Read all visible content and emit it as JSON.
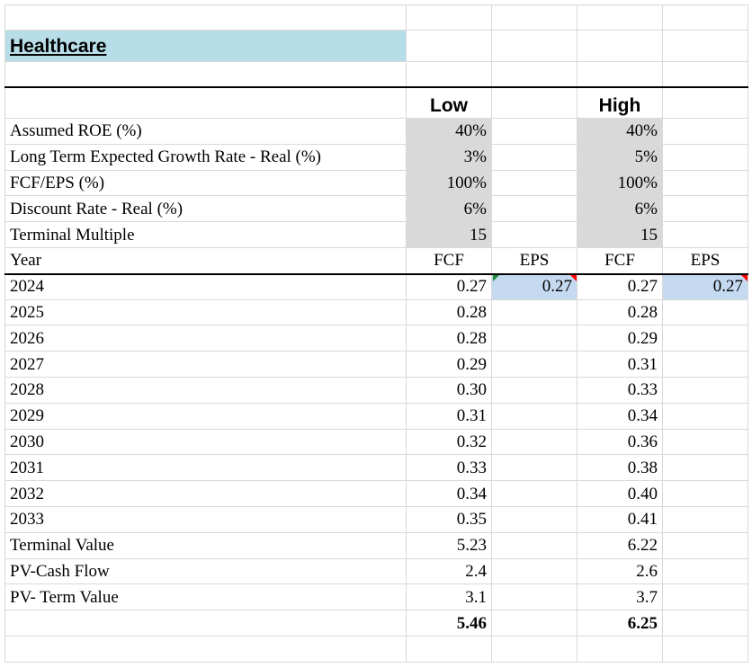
{
  "title": "Healthcare",
  "scenario_headers": {
    "low": "Low",
    "high": "High"
  },
  "table": {
    "rows": [
      [
        "Assumed ROE (%)",
        "40%",
        null,
        "40%",
        null
      ],
      [
        "Long Term Expected Growth Rate - Real (%)",
        "3%",
        null,
        "5%",
        null
      ],
      [
        "FCF/EPS (%)",
        "100%",
        null,
        "100%",
        null
      ],
      [
        "Discount Rate - Real (%)",
        "6%",
        null,
        "6%",
        null
      ],
      [
        "Terminal Multiple",
        "15",
        null,
        "15",
        null
      ],
      [
        "Year",
        "FCF",
        "EPS",
        "FCF",
        "EPS"
      ],
      [
        "2024",
        "0.27",
        "0.27",
        "0.27",
        "0.27"
      ],
      [
        "2025",
        "0.28",
        null,
        "0.28",
        null
      ],
      [
        "2026",
        "0.28",
        null,
        "0.29",
        null
      ],
      [
        "2027",
        "0.29",
        null,
        "0.31",
        null
      ],
      [
        "2028",
        "0.30",
        null,
        "0.33",
        null
      ],
      [
        "2029",
        "0.31",
        null,
        "0.34",
        null
      ],
      [
        "2030",
        "0.32",
        null,
        "0.36",
        null
      ],
      [
        "2031",
        "0.33",
        null,
        "0.38",
        null
      ],
      [
        "2032",
        "0.34",
        null,
        "0.40",
        null
      ],
      [
        "2033",
        "0.35",
        null,
        "0.41",
        null
      ],
      [
        "Terminal Value",
        "5.23",
        null,
        "6.22",
        null
      ],
      [
        "PV-Cash Flow",
        "2.4",
        null,
        "2.6",
        null
      ],
      [
        "PV- Term Value",
        "3.1",
        null,
        "3.7",
        null
      ],
      [
        null,
        "5.46",
        null,
        "6.25",
        null
      ]
    ]
  }
}
